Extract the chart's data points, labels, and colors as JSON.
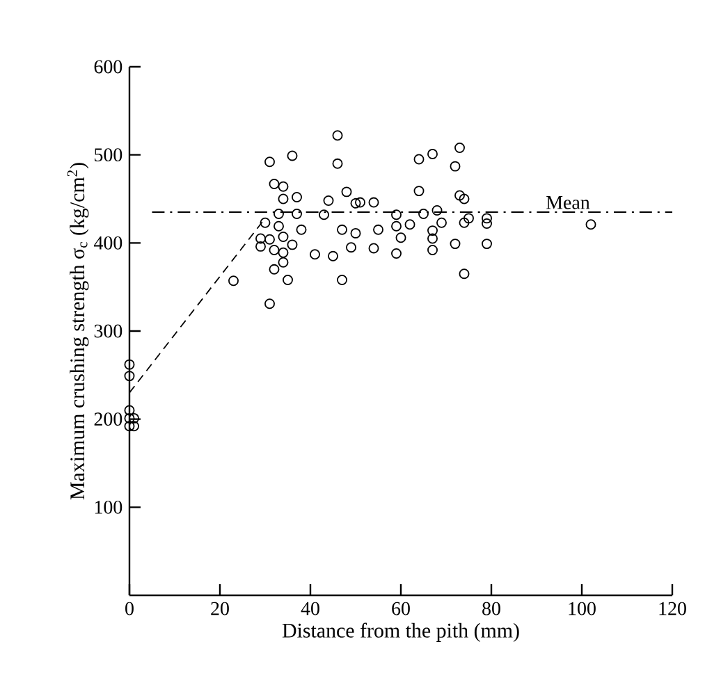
{
  "chart_data": {
    "type": "scatter",
    "xlabel": "Distance from the pith (mm)",
    "ylabel": "Maximum crushing strength σ$_{c}$ (kg/cm$^{2}$)",
    "xlim": [
      0,
      120
    ],
    "ylim": [
      0,
      600
    ],
    "xticks": [
      0,
      20,
      40,
      60,
      80,
      100,
      120
    ],
    "yticks": [
      100,
      200,
      300,
      400,
      500,
      600
    ],
    "grid": false,
    "marker": "circle",
    "ref_lines": [
      {
        "axis": "y",
        "value": 435,
        "label": "Mean",
        "line_style": "dashdot"
      }
    ],
    "series": [
      {
        "color": "#000000",
        "x": [
          0,
          0,
          0,
          1,
          0,
          0,
          1,
          23,
          31,
          36,
          46,
          46,
          32,
          34,
          34,
          37,
          33,
          37,
          30,
          29,
          29,
          31,
          32,
          33,
          34,
          34,
          34,
          32,
          36,
          38,
          35,
          31,
          41,
          43,
          44,
          48,
          47,
          45,
          47,
          50,
          49,
          50,
          51,
          54,
          55,
          54,
          59,
          59,
          60,
          59,
          62,
          64,
          65,
          64,
          67,
          67,
          67,
          67,
          68,
          69,
          72,
          73,
          73,
          74,
          72,
          74,
          75,
          74,
          79,
          79,
          79,
          102
        ],
        "values": [
          262,
          249,
          210,
          201,
          201,
          192,
          192,
          357,
          492,
          499,
          522,
          490,
          467,
          464,
          450,
          452,
          433,
          433,
          423,
          405,
          396,
          404,
          392,
          419,
          407,
          389,
          378,
          370,
          398,
          415,
          358,
          331,
          387,
          432,
          448,
          458,
          415,
          385,
          358,
          445,
          395,
          411,
          446,
          446,
          415,
          394,
          432,
          419,
          406,
          388,
          421,
          459,
          433,
          495,
          501,
          414,
          405,
          392,
          437,
          423,
          487,
          508,
          454,
          450,
          399,
          423,
          428,
          365,
          428,
          422,
          399,
          421
        ]
      },
      {
        "type": "line",
        "color": "#000000",
        "line_style": "dashed",
        "marker": "none",
        "x": [
          0,
          30
        ],
        "values": [
          230,
          428
        ]
      }
    ]
  }
}
